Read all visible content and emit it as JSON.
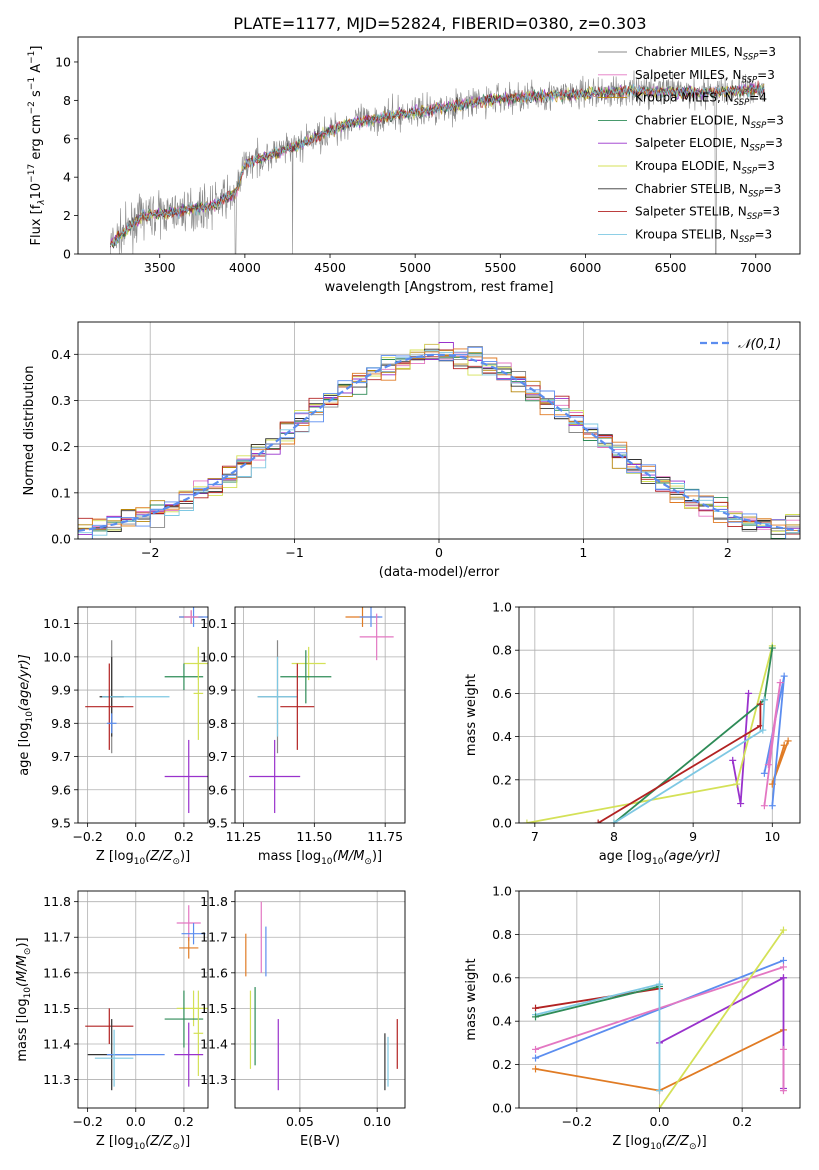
{
  "figure_title": "PLATE=1177, MJD=52824, FIBERID=0380, z=0.303",
  "series_colors": {
    "chabrier_miles": "#888888",
    "salpeter_miles": "#e377c2",
    "kroupa_miles": "#b8860b",
    "chabrier_elodie": "#2e8b57",
    "salpeter_elodie": "#9932cc",
    "kroupa_elodie": "#d4e157",
    "chabrier_stelib": "#333333",
    "salpeter_stelib": "#b22222",
    "kroupa_stelib": "#7ec8e3",
    "extra_orange": "#e07b24",
    "extra_blue": "#5b8def"
  },
  "chart_data": [
    {
      "id": "spectrum",
      "type": "line",
      "xlabel": "wavelength [Angstrom, rest frame]",
      "ylabel_main": "Flux [f",
      "ylabel_sub1": "λ",
      "ylabel_mid": "10",
      "ylabel_sup1": "−17",
      "ylabel_rest": " erg cm",
      "ylabel_sup2": "−2",
      "ylabel_rest2": " s",
      "ylabel_sup3": "−1",
      "ylabel_rest3": " A",
      "ylabel_sup4": "−1",
      "ylabel_end": "]",
      "xlim": [
        3020,
        7260
      ],
      "ylim": [
        0,
        11.3
      ],
      "xticks": [
        "3500",
        "4000",
        "4500",
        "5000",
        "5500",
        "6000",
        "6500",
        "7000"
      ],
      "xtick_values": [
        3500,
        4000,
        4500,
        5000,
        5500,
        6000,
        6500,
        7000
      ],
      "yticks": [
        "0",
        "2",
        "4",
        "6",
        "8",
        "10"
      ],
      "ytick_values": [
        0,
        2,
        4,
        6,
        8,
        10
      ],
      "legend_location": "upper right",
      "legend": [
        {
          "label": "Chabrier MILES, N",
          "sub": "SSP",
          "suffix": "=3",
          "color": "#888888"
        },
        {
          "label": "Salpeter MILES, N",
          "sub": "SSP",
          "suffix": "=3",
          "color": "#e377c2"
        },
        {
          "label": "Kroupa MILES, N",
          "sub": "SSP",
          "suffix": "=4",
          "color": "#b8860b"
        },
        {
          "label": "Chabrier ELODIE, N",
          "sub": "SSP",
          "suffix": "=3",
          "color": "#2e8b57"
        },
        {
          "label": "Salpeter ELODIE, N",
          "sub": "SSP",
          "suffix": "=3",
          "color": "#9932cc"
        },
        {
          "label": "Kroupa ELODIE, N",
          "sub": "SSP",
          "suffix": "=3",
          "color": "#d4e157"
        },
        {
          "label": "Chabrier STELIB, N",
          "sub": "SSP",
          "suffix": "=3",
          "color": "#333333"
        },
        {
          "label": "Salpeter STELIB, N",
          "sub": "SSP",
          "suffix": "=3",
          "color": "#b22222"
        },
        {
          "label": "Kroupa STELIB, N",
          "sub": "SSP",
          "suffix": "=3",
          "color": "#7ec8e3"
        }
      ],
      "continuum": {
        "x": [
          3210,
          3400,
          3600,
          3800,
          3950,
          4000,
          4300,
          4600,
          5000,
          5500,
          5900,
          6300,
          6700,
          7000,
          7050
        ],
        "y": [
          0.5,
          2.0,
          2.2,
          2.5,
          3.2,
          4.7,
          5.6,
          6.8,
          7.4,
          8.1,
          8.3,
          8.5,
          8.4,
          8.6,
          8.5
        ]
      }
    },
    {
      "id": "residuals",
      "type": "step",
      "xlabel": "(data-model)/error",
      "ylabel": "Normed distribution",
      "xlim": [
        -2.5,
        2.5
      ],
      "ylim": [
        0,
        0.47
      ],
      "xticks": [
        "−2",
        "−1",
        "0",
        "1",
        "2"
      ],
      "xtick_values": [
        -2,
        -1,
        0,
        1,
        2
      ],
      "yticks": [
        "0.0",
        "0.1",
        "0.2",
        "0.3",
        "0.4"
      ],
      "ytick_values": [
        0,
        0.1,
        0.2,
        0.3,
        0.4
      ],
      "legend_location": "upper right",
      "legend_label": "𝒩(0,1)",
      "legend_color": "#5b8def",
      "bin_width": 0.1,
      "bin_start": -2.5
    },
    {
      "id": "age_vs_Z",
      "type": "errorbar",
      "xlabel_main": "Z [log",
      "xlabel_sub": "10",
      "xlabel_rest": "(Z/Z",
      "xlabel_sun": "⊙",
      "xlabel_end": ")]",
      "ylabel_main": "age  [log",
      "ylabel_sub": "10",
      "ylabel_rest": "(age/yr)]",
      "xlim": [
        -0.24,
        0.3
      ],
      "ylim": [
        9.5,
        10.15
      ],
      "xticks": [
        "−0.2",
        "0.0",
        "0.2"
      ],
      "xtick_values": [
        -0.2,
        0.0,
        0.2
      ],
      "yticks": [
        "9.5",
        "9.6",
        "9.7",
        "9.8",
        "9.9",
        "10.0",
        "10.1"
      ],
      "ytick_values": [
        9.5,
        9.6,
        9.7,
        9.8,
        9.9,
        10.0,
        10.1
      ],
      "points": [
        {
          "x": 0.23,
          "y": 10.12,
          "xe": 0.05,
          "ye": 0.02,
          "color": "#e07b24"
        },
        {
          "x": 0.24,
          "y": 10.12,
          "xe": 0.06,
          "ye": 0.03,
          "color": "#5b8def"
        },
        {
          "x": 0.23,
          "y": 10.12,
          "xe": 0.03,
          "ye": 0.02,
          "color": "#e377c2"
        },
        {
          "x": 0.26,
          "y": 9.98,
          "xe": 0.06,
          "ye": 0.05,
          "color": "#d4e157"
        },
        {
          "x": 0.2,
          "y": 9.94,
          "xe": 0.08,
          "ye": 0.04,
          "color": "#2e8b57"
        },
        {
          "x": 0.26,
          "y": 9.89,
          "xe": 0.02,
          "ye": 0.14,
          "color": "#d4e157"
        },
        {
          "x": -0.1,
          "y": 9.88,
          "xe": 0.05,
          "ye": 0.17,
          "color": "#888888"
        },
        {
          "x": -0.1,
          "y": 9.88,
          "xe": 0.05,
          "ye": 0.12,
          "color": "#333333"
        },
        {
          "x": 0.0,
          "y": 9.88,
          "xe": 0.14,
          "ye": 0.0,
          "color": "#7ec8e3"
        },
        {
          "x": -0.11,
          "y": 9.85,
          "xe": 0.1,
          "ye": 0.13,
          "color": "#b22222"
        },
        {
          "x": 0.22,
          "y": 9.64,
          "xe": 0.1,
          "ye": 0.11,
          "color": "#9932cc"
        },
        {
          "x": -0.1,
          "y": 9.8,
          "xe": 0.02,
          "ye": 0.03,
          "color": "#5b8def"
        }
      ]
    },
    {
      "id": "age_vs_mass",
      "type": "errorbar",
      "xlabel_main": "mass [log",
      "xlabel_sub": "10",
      "xlabel_rest": "(M/M",
      "xlabel_sun": "⊙",
      "xlabel_end": ")]",
      "xlim": [
        11.22,
        11.82
      ],
      "ylim": [
        9.5,
        10.15
      ],
      "xticks": [
        "11.25",
        "11.50",
        "11.75"
      ],
      "xtick_values": [
        11.25,
        11.5,
        11.75
      ],
      "yticks": [
        "9.5",
        "9.6",
        "9.7",
        "9.8",
        "9.9",
        "10.0",
        "10.1"
      ],
      "ytick_values": [
        9.5,
        9.6,
        9.7,
        9.8,
        9.9,
        10.0,
        10.1
      ],
      "points": [
        {
          "x": 11.67,
          "y": 10.12,
          "xe": 0.06,
          "ye": 0.03,
          "color": "#e07b24"
        },
        {
          "x": 11.7,
          "y": 10.12,
          "xe": 0.04,
          "ye": 0.03,
          "color": "#5b8def"
        },
        {
          "x": 11.72,
          "y": 10.06,
          "xe": 0.06,
          "ye": 0.07,
          "color": "#e377c2"
        },
        {
          "x": 11.48,
          "y": 9.98,
          "xe": 0.06,
          "ye": 0.05,
          "color": "#d4e157"
        },
        {
          "x": 11.47,
          "y": 9.94,
          "xe": 0.09,
          "ye": 0.08,
          "color": "#2e8b57"
        },
        {
          "x": 11.37,
          "y": 9.88,
          "xe": 0.07,
          "ye": 0.17,
          "color": "#888888"
        },
        {
          "x": 11.37,
          "y": 9.88,
          "xe": 0.07,
          "ye": 0.12,
          "color": "#7ec8e3"
        },
        {
          "x": 11.44,
          "y": 9.85,
          "xe": 0.06,
          "ye": 0.13,
          "color": "#b22222"
        },
        {
          "x": 11.36,
          "y": 9.64,
          "xe": 0.09,
          "ye": 0.11,
          "color": "#9932cc"
        }
      ]
    },
    {
      "id": "weight_vs_age",
      "type": "line",
      "xlabel_main": "age  [log",
      "xlabel_sub": "10",
      "xlabel_rest": "(age/yr)]",
      "ylabel": "mass weight",
      "xlim": [
        6.8,
        10.35
      ],
      "ylim": [
        0,
        1.0
      ],
      "xticks": [
        "7",
        "8",
        "9",
        "10"
      ],
      "xtick_values": [
        7,
        8,
        9,
        10
      ],
      "yticks": [
        "0.0",
        "0.2",
        "0.4",
        "0.6",
        "0.8",
        "1.0"
      ],
      "ytick_values": [
        0,
        0.2,
        0.4,
        0.6,
        0.8,
        1.0
      ],
      "series": [
        {
          "color": "#e07b24",
          "x": [
            10.2,
            10.0,
            10.15
          ],
          "y": [
            0.38,
            0.18,
            0.36
          ]
        },
        {
          "color": "#5b8def",
          "x": [
            10.0,
            10.15,
            9.9
          ],
          "y": [
            0.08,
            0.68,
            0.23
          ]
        },
        {
          "color": "#e377c2",
          "x": [
            9.9,
            10.1,
            9.95
          ],
          "y": [
            0.08,
            0.65,
            0.27
          ]
        },
        {
          "color": "#9932cc",
          "x": [
            9.5,
            9.6,
            9.7
          ],
          "y": [
            0.29,
            0.09,
            0.6
          ]
        },
        {
          "color": "#d4e157",
          "x": [
            6.9,
            9.55,
            10.0
          ],
          "y": [
            0.0,
            0.18,
            0.82
          ]
        },
        {
          "color": "#2e8b57",
          "x": [
            8.0,
            9.9,
            10.0
          ],
          "y": [
            0.0,
            0.57,
            0.81
          ]
        },
        {
          "color": "#b22222",
          "x": [
            7.8,
            9.85,
            9.85
          ],
          "y": [
            0.0,
            0.45,
            0.55
          ]
        },
        {
          "color": "#7ec8e3",
          "x": [
            8.0,
            9.88,
            9.9
          ],
          "y": [
            0.0,
            0.43,
            0.57
          ]
        }
      ]
    },
    {
      "id": "mass_vs_Z",
      "type": "errorbar",
      "xlabel_main": "Z [log",
      "xlabel_sub": "10",
      "xlabel_rest": "(Z/Z",
      "xlabel_sun": "⊙",
      "xlabel_end": ")]",
      "ylabel_main": "mass [log",
      "ylabel_sub": "10",
      "ylabel_rest": "(M/M",
      "ylabel_sun": "⊙",
      "ylabel_end": ")]",
      "xlim": [
        -0.24,
        0.3
      ],
      "ylim": [
        11.22,
        11.83
      ],
      "xticks": [
        "−0.2",
        "0.0",
        "0.2"
      ],
      "xtick_values": [
        -0.2,
        0.0,
        0.2
      ],
      "yticks": [
        "11.3",
        "11.4",
        "11.5",
        "11.6",
        "11.7",
        "11.8"
      ],
      "ytick_values": [
        11.3,
        11.4,
        11.5,
        11.6,
        11.7,
        11.8
      ],
      "points": [
        {
          "x": 0.22,
          "y": 11.74,
          "xe": 0.05,
          "ye": 0.05,
          "color": "#e377c2"
        },
        {
          "x": 0.24,
          "y": 11.71,
          "xe": 0.05,
          "ye": 0.03,
          "color": "#5b8def"
        },
        {
          "x": 0.22,
          "y": 11.67,
          "xe": 0.04,
          "ye": 0.03,
          "color": "#e07b24"
        },
        {
          "x": 0.24,
          "y": 11.5,
          "xe": 0.07,
          "ye": 0.05,
          "color": "#d4e157"
        },
        {
          "x": 0.2,
          "y": 11.47,
          "xe": 0.08,
          "ye": 0.08,
          "color": "#2e8b57"
        },
        {
          "x": -0.11,
          "y": 11.45,
          "xe": 0.1,
          "ye": 0.05,
          "color": "#b22222"
        },
        {
          "x": 0.26,
          "y": 11.43,
          "xe": 0.02,
          "ye": 0.12,
          "color": "#d4e157"
        },
        {
          "x": 0.22,
          "y": 11.37,
          "xe": 0.06,
          "ye": 0.09,
          "color": "#9932cc"
        },
        {
          "x": -0.1,
          "y": 11.37,
          "xe": 0.1,
          "ye": 0.1,
          "color": "#333333"
        },
        {
          "x": 0.0,
          "y": 11.37,
          "xe": 0.12,
          "ye": 0.0,
          "color": "#5b8def"
        },
        {
          "x": -0.09,
          "y": 11.36,
          "xe": 0.08,
          "ye": 0.08,
          "color": "#7ec8e3"
        }
      ]
    },
    {
      "id": "mass_vs_ebv",
      "type": "errorbar",
      "xlabel": "E(B-V)",
      "xlim": [
        0.008,
        0.118
      ],
      "ylim": [
        11.22,
        11.83
      ],
      "xticks": [
        "0.05",
        "0.10"
      ],
      "xtick_values": [
        0.05,
        0.1
      ],
      "yticks": [
        "11.3",
        "11.4",
        "11.5",
        "11.6",
        "11.7",
        "11.8"
      ],
      "ytick_values": [
        11.3,
        11.4,
        11.5,
        11.6,
        11.7,
        11.8
      ],
      "points": [
        {
          "x": 0.015,
          "y": 11.65,
          "xe": 0,
          "ye": 0.06,
          "color": "#e07b24"
        },
        {
          "x": 0.018,
          "y": 11.44,
          "xe": 0,
          "ye": 0.11,
          "color": "#d4e157"
        },
        {
          "x": 0.021,
          "y": 11.45,
          "xe": 0,
          "ye": 0.11,
          "color": "#2e8b57"
        },
        {
          "x": 0.025,
          "y": 11.7,
          "xe": 0,
          "ye": 0.1,
          "color": "#e377c2"
        },
        {
          "x": 0.028,
          "y": 11.66,
          "xe": 0,
          "ye": 0.07,
          "color": "#5b8def"
        },
        {
          "x": 0.036,
          "y": 11.37,
          "xe": 0,
          "ye": 0.1,
          "color": "#9932cc"
        },
        {
          "x": 0.105,
          "y": 11.35,
          "xe": 0,
          "ye": 0.08,
          "color": "#333333"
        },
        {
          "x": 0.107,
          "y": 11.35,
          "xe": 0,
          "ye": 0.07,
          "color": "#7ec8e3"
        },
        {
          "x": 0.113,
          "y": 11.4,
          "xe": 0,
          "ye": 0.07,
          "color": "#b22222"
        }
      ]
    },
    {
      "id": "weight_vs_Z",
      "type": "line",
      "xlabel_main": "Z [log",
      "xlabel_sub": "10",
      "xlabel_rest": "(Z/Z",
      "xlabel_sun": "⊙",
      "xlabel_end": ")]",
      "ylabel": "mass weight",
      "xlim": [
        -0.34,
        0.34
      ],
      "ylim": [
        0,
        1.0
      ],
      "xticks": [
        "−0.2",
        "0.0",
        "0.2"
      ],
      "xtick_values": [
        -0.2,
        0.0,
        0.2
      ],
      "yticks": [
        "0.0",
        "0.2",
        "0.4",
        "0.6",
        "0.8",
        "1.0"
      ],
      "ytick_values": [
        0,
        0.2,
        0.4,
        0.6,
        0.8,
        1.0
      ],
      "series": [
        {
          "color": "#b22222",
          "x": [
            -0.3,
            0.0
          ],
          "y": [
            0.46,
            0.55
          ]
        },
        {
          "color": "#7ec8e3",
          "x": [
            -0.3,
            0.0
          ],
          "y": [
            0.43,
            0.57
          ]
        },
        {
          "color": "#2e8b57",
          "x": [
            -0.3,
            0.0
          ],
          "y": [
            0.42,
            0.56
          ]
        },
        {
          "color": "#5b8def",
          "x": [
            -0.3,
            0.3
          ],
          "y": [
            0.23,
            0.68
          ]
        },
        {
          "color": "#e377c2",
          "x": [
            -0.3,
            0.3
          ],
          "y": [
            0.27,
            0.65
          ]
        },
        {
          "color": "#e07b24",
          "x": [
            -0.3,
            0.0,
            0.3
          ],
          "y": [
            0.18,
            0.08,
            0.36
          ]
        },
        {
          "color": "#9932cc",
          "x": [
            0.0,
            0.3
          ],
          "y": [
            0.3,
            0.6
          ]
        },
        {
          "color": "#d4e157",
          "x": [
            0.0,
            0.3
          ],
          "y": [
            0.0,
            0.82
          ]
        },
        {
          "color": "#9932cc",
          "x": [
            0.3,
            0.3
          ],
          "y": [
            0.6,
            0.09
          ]
        },
        {
          "color": "#e377c2",
          "x": [
            0.3,
            0.3
          ],
          "y": [
            0.27,
            0.08
          ]
        },
        {
          "color": "#7ec8e3",
          "x": [
            0.0,
            0.0
          ],
          "y": [
            0.57,
            0.08
          ]
        }
      ]
    }
  ]
}
